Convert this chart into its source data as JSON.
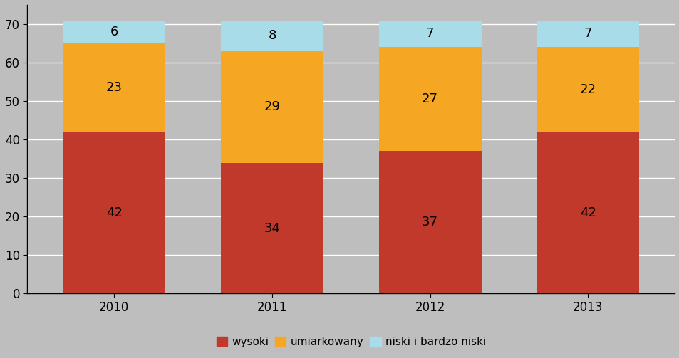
{
  "years": [
    "2010",
    "2011",
    "2012",
    "2013"
  ],
  "wysoki": [
    42,
    34,
    37,
    42
  ],
  "umiarkowany": [
    23,
    29,
    27,
    22
  ],
  "niski_i_bardzo_niski": [
    6,
    8,
    7,
    7
  ],
  "colors": {
    "wysoki": "#C0392B",
    "umiarkowany": "#F5A623",
    "niski_i_bardzo_niski": "#A8DCE8"
  },
  "ylim": [
    0,
    75
  ],
  "yticks": [
    0,
    10,
    20,
    30,
    40,
    50,
    60,
    70
  ],
  "legend_labels": [
    "wysoki",
    "umiarkowany",
    "niski i bardzo niski"
  ],
  "figure_bg_color": "#BEBEBE",
  "plot_bg_color": "#BEBEBE",
  "label_fontsize": 13,
  "tick_fontsize": 12,
  "legend_fontsize": 11,
  "bar_width": 0.65
}
